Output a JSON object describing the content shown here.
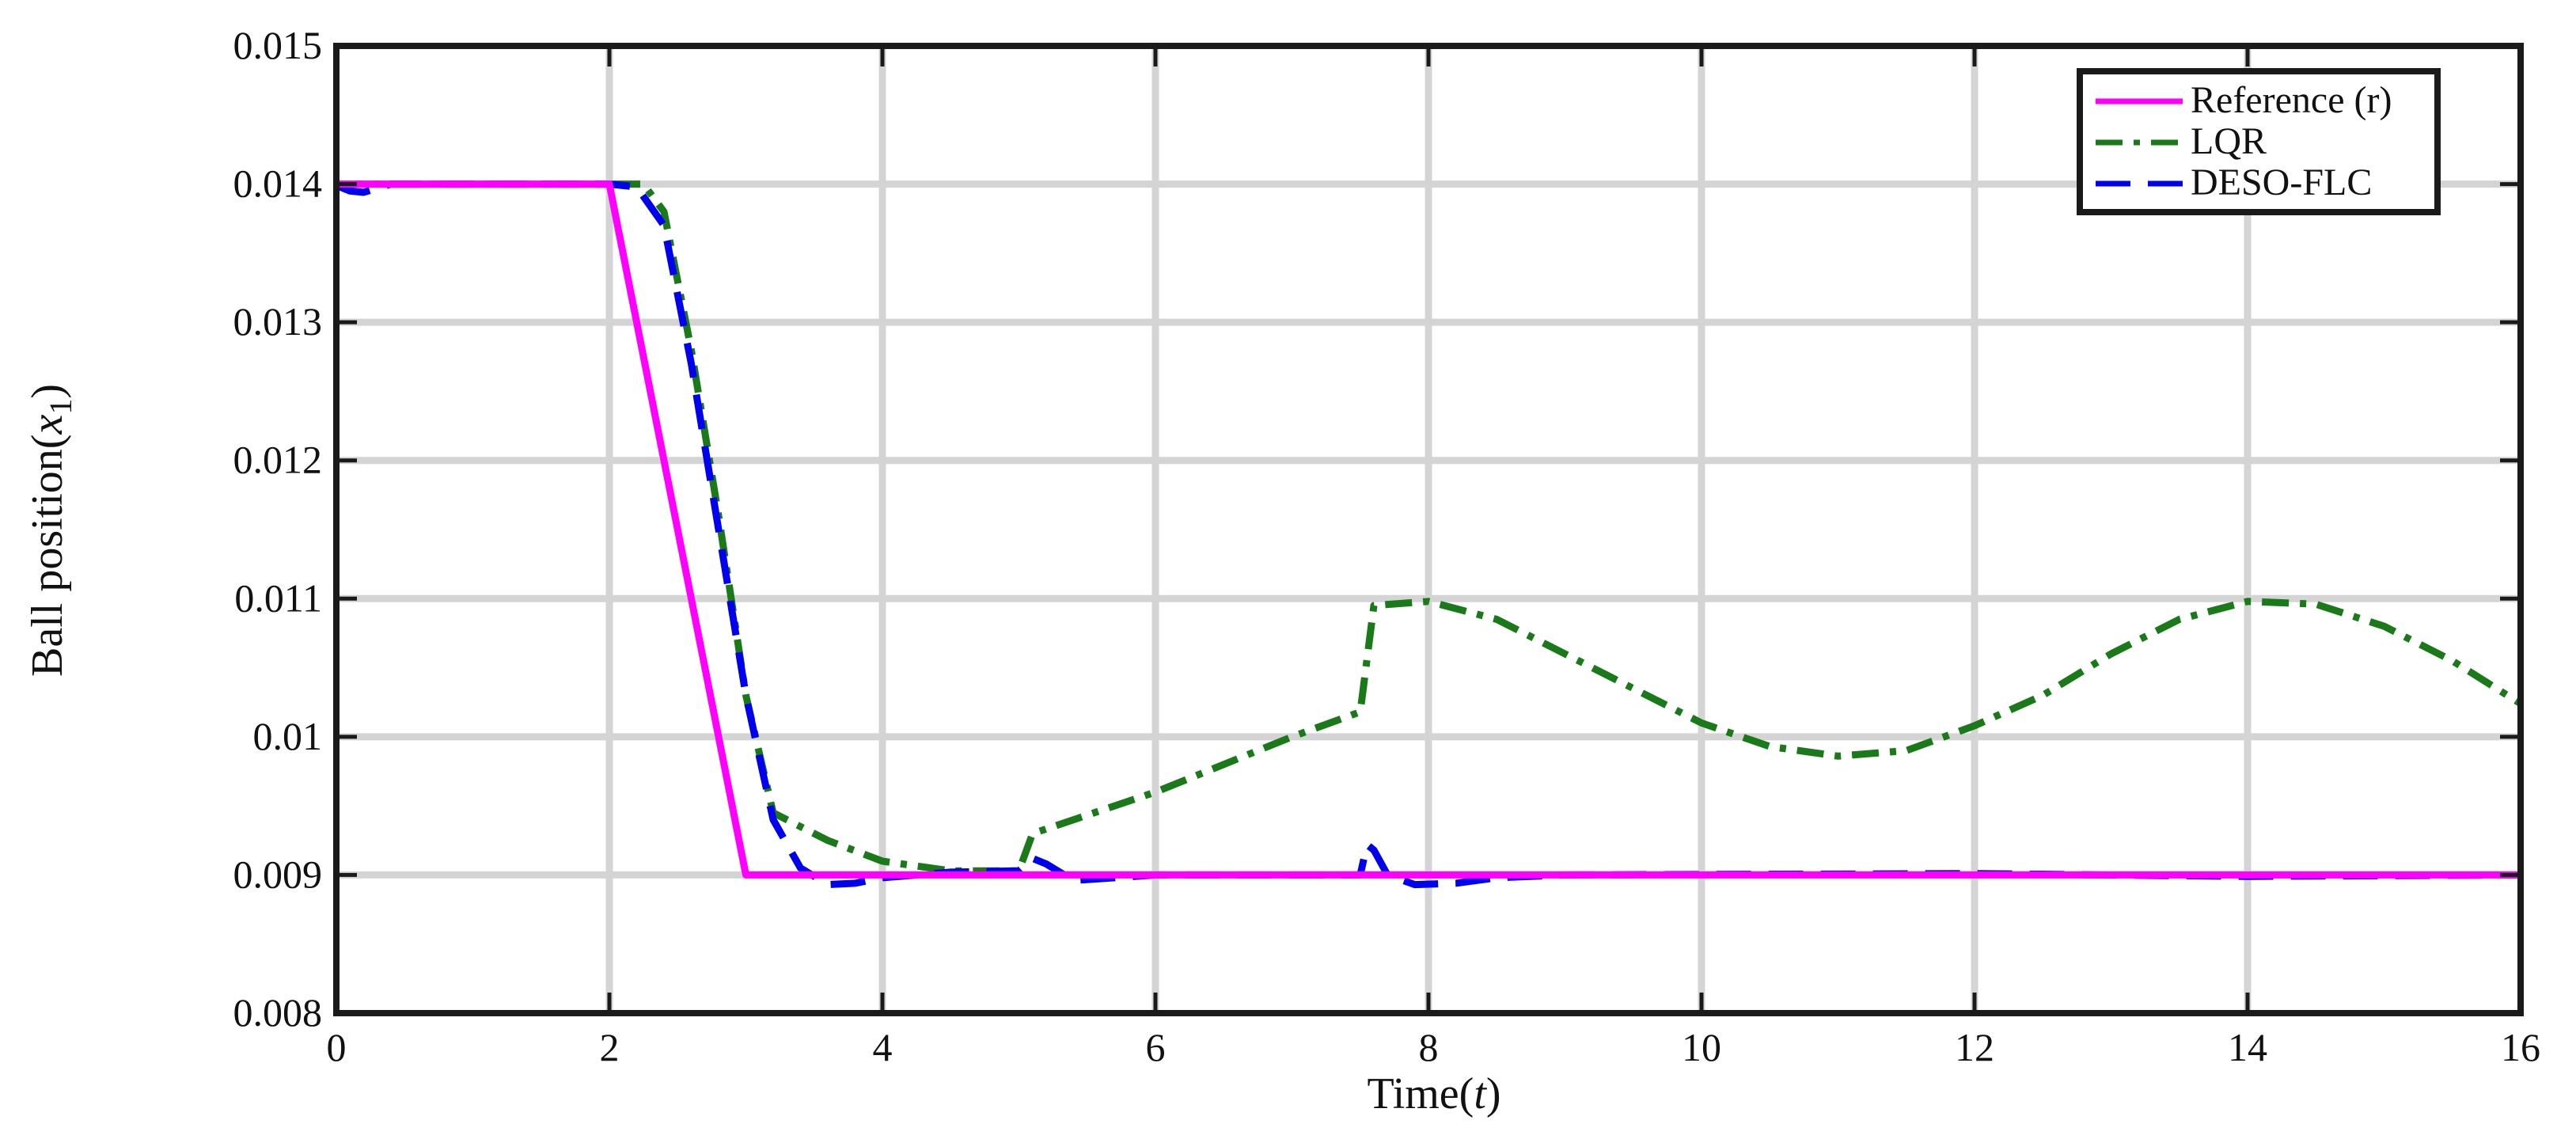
{
  "chart_data": {
    "type": "line",
    "xlabel": "Time(t)",
    "ylabel": "Ball position(x1)",
    "xlim": [
      0,
      16
    ],
    "ylim": [
      0.008,
      0.015
    ],
    "grid": true,
    "legend_position": "top-right",
    "xticks": [
      0,
      2,
      4,
      6,
      8,
      10,
      12,
      14,
      16
    ],
    "xtick_labels": [
      "0",
      "2",
      "4",
      "6",
      "8",
      "10",
      "12",
      "14",
      "16"
    ],
    "yticks": [
      0.008,
      0.009,
      0.01,
      0.011,
      0.012,
      0.013,
      0.014,
      0.015
    ],
    "ytick_labels": [
      "0.008",
      "0.009",
      "0.01",
      "0.011",
      "0.012",
      "0.013",
      "0.014",
      "0.015"
    ],
    "series": [
      {
        "name": "Reference (r)",
        "color": "#ff00ff",
        "style": "solid",
        "x": [
          0,
          2,
          3,
          16
        ],
        "y": [
          0.014,
          0.014,
          0.009,
          0.009
        ]
      },
      {
        "name": "LQR",
        "color": "#1a7a1a",
        "style": "dashdot",
        "x": [
          0,
          2.1,
          2.25,
          2.4,
          2.6,
          2.8,
          3.0,
          3.2,
          3.6,
          4.0,
          4.5,
          5.0,
          5.1,
          6.0,
          7.0,
          7.5,
          7.6,
          8.0,
          8.5,
          9.0,
          9.5,
          10.0,
          10.5,
          11.0,
          11.5,
          12.0,
          12.5,
          13.0,
          13.5,
          14.0,
          14.5,
          15.0,
          15.5,
          16.0
        ],
        "y": [
          0.014,
          0.014,
          0.014,
          0.0138,
          0.0128,
          0.0116,
          0.0103,
          0.00945,
          0.00925,
          0.0091,
          0.00903,
          0.00903,
          0.0093,
          0.0096,
          0.01,
          0.01018,
          0.01095,
          0.01098,
          0.01085,
          0.0106,
          0.01035,
          0.0101,
          0.00993,
          0.00986,
          0.0099,
          0.01008,
          0.0103,
          0.0106,
          0.01085,
          0.01098,
          0.01096,
          0.0108,
          0.01055,
          0.01024
        ]
      },
      {
        "name": "DESO-FLC",
        "color": "#0000ee",
        "style": "dashed",
        "x": [
          0,
          0.1,
          0.2,
          0.4,
          2.0,
          2.2,
          2.4,
          2.6,
          2.8,
          3.0,
          3.2,
          3.4,
          3.6,
          3.8,
          4.0,
          4.5,
          5.0,
          5.1,
          5.2,
          5.4,
          6.0,
          7.0,
          7.5,
          7.55,
          7.6,
          7.7,
          7.9,
          8.2,
          8.5,
          9.0,
          12.0,
          14.0,
          16.0
        ],
        "y": [
          0.01399,
          0.01395,
          0.01394,
          0.014,
          0.014,
          0.01398,
          0.0137,
          0.0127,
          0.0115,
          0.0103,
          0.0094,
          0.00905,
          0.00893,
          0.00894,
          0.00898,
          0.00902,
          0.00903,
          0.00912,
          0.00908,
          0.00896,
          0.009,
          0.009,
          0.009,
          0.00922,
          0.00918,
          0.009,
          0.00893,
          0.00894,
          0.00898,
          0.009,
          0.00901,
          0.00899,
          0.009
        ]
      }
    ]
  }
}
